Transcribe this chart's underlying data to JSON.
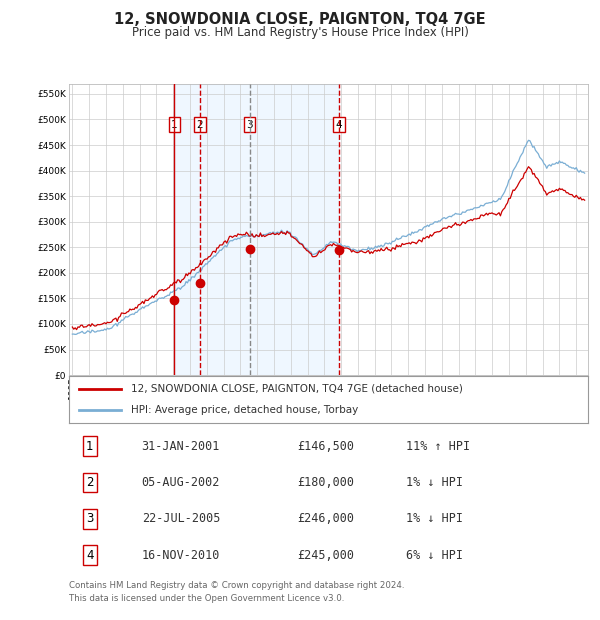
{
  "title": "12, SNOWDONIA CLOSE, PAIGNTON, TQ4 7GE",
  "subtitle": "Price paid vs. HM Land Registry's House Price Index (HPI)",
  "legend_line1": "12, SNOWDONIA CLOSE, PAIGNTON, TQ4 7GE (detached house)",
  "legend_line2": "HPI: Average price, detached house, Torbay",
  "footer1": "Contains HM Land Registry data © Crown copyright and database right 2024.",
  "footer2": "This data is licensed under the Open Government Licence v3.0.",
  "sale_labels": [
    "1",
    "2",
    "3",
    "4"
  ],
  "sale_dates_label": [
    "31-JAN-2001",
    "05-AUG-2002",
    "22-JUL-2005",
    "16-NOV-2010"
  ],
  "sale_prices_label": [
    "£146,500",
    "£180,000",
    "£246,000",
    "£245,000"
  ],
  "sale_hpi_label": [
    "11% ↑ HPI",
    "1% ↓ HPI",
    "1% ↓ HPI",
    "6% ↓ HPI"
  ],
  "sale_years": [
    2001.08,
    2002.58,
    2005.55,
    2010.88
  ],
  "sale_prices": [
    146500,
    180000,
    246000,
    245000
  ],
  "hpi_color": "#7aaed4",
  "price_color": "#cc0000",
  "dot_color": "#cc0000",
  "shade_color": "#ddeeff",
  "shade_alpha": 0.45,
  "ylim": [
    0,
    570000
  ],
  "yticks": [
    0,
    50000,
    100000,
    150000,
    200000,
    250000,
    300000,
    350000,
    400000,
    450000,
    500000,
    550000
  ],
  "xlabel_years": [
    1995,
    1996,
    1997,
    1998,
    1999,
    2000,
    2001,
    2002,
    2003,
    2004,
    2005,
    2006,
    2007,
    2008,
    2009,
    2010,
    2011,
    2012,
    2013,
    2014,
    2015,
    2016,
    2017,
    2018,
    2019,
    2020,
    2021,
    2022,
    2023,
    2024,
    2025
  ],
  "background_color": "#ffffff",
  "grid_color": "#cccccc"
}
